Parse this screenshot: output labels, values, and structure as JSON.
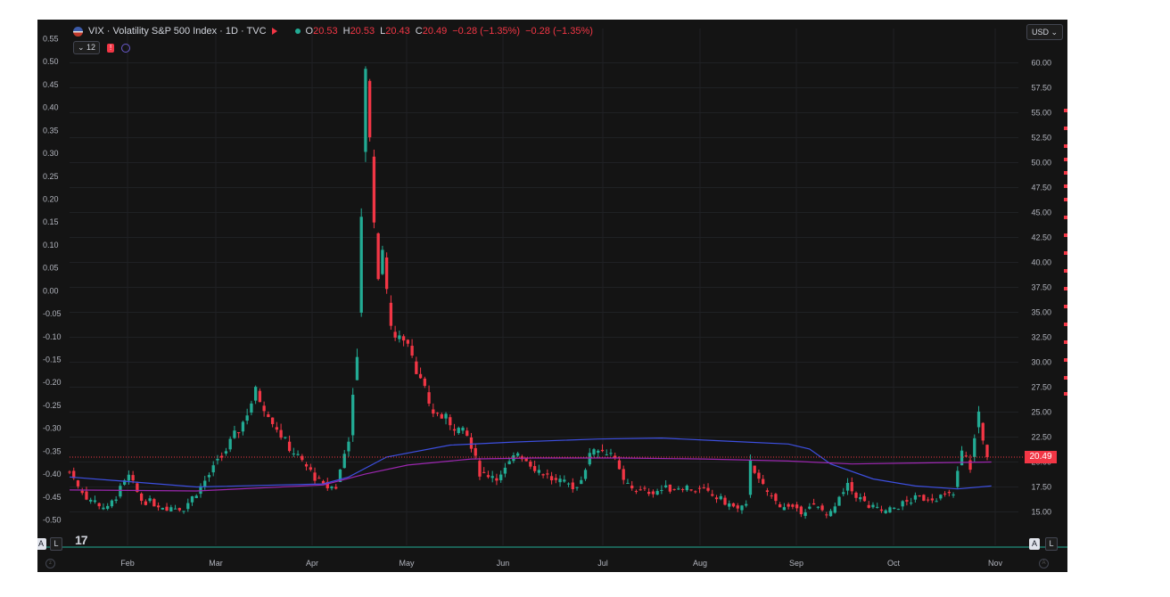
{
  "header": {
    "title": "VIX · Volatility S&P 500 Index · 1D · TVC",
    "o_label": "O",
    "o_value": "20.53",
    "h_label": "H",
    "h_value": "20.53",
    "l_label": "L",
    "l_value": "20.43",
    "c_label": "C",
    "c_value": "20.49",
    "change": "−0.28 (−1.35%)",
    "change2": "−0.28 (−1.35%)"
  },
  "controls": {
    "indicators_count": "12",
    "currency": "USD"
  },
  "colors": {
    "up": "#22ab94",
    "down": "#f23645",
    "ma_long": "#3d4fe0",
    "ma_short": "#9c27b0",
    "price_line": "#f23645",
    "grid": "#1f2124",
    "axis_text": "#b2b5be"
  },
  "buttons": {
    "a_left": "A",
    "l_left": "L",
    "a_right": "A",
    "l_right": "L"
  },
  "chart_data": {
    "type": "candlestick",
    "title": "VIX · Volatility S&P 500 Index · 1D · TVC",
    "last_price": 20.49,
    "last_price_label": "20.49",
    "x_ticks": [
      "Feb",
      "Mar",
      "Apr",
      "May",
      "Jun",
      "Jul",
      "Aug",
      "Sep",
      "Oct",
      "Nov"
    ],
    "right_axis": {
      "range": [
        13.0,
        63.0
      ],
      "ticks": [
        "60.00",
        "57.50",
        "55.00",
        "52.50",
        "50.00",
        "47.50",
        "45.00",
        "42.50",
        "40.00",
        "37.50",
        "35.00",
        "32.50",
        "30.00",
        "27.50",
        "25.00",
        "22.50",
        "20.00",
        "17.50",
        "15.00"
      ]
    },
    "left_axis": {
      "range": [
        -0.55,
        0.59
      ],
      "ticks": [
        "0.55",
        "0.50",
        "0.45",
        "0.40",
        "0.35",
        "0.30",
        "0.25",
        "0.20",
        "0.15",
        "0.10",
        "0.05",
        "0.00",
        "-0.05",
        "-0.10",
        "-0.15",
        "-0.20",
        "-0.25",
        "-0.30",
        "-0.35",
        "-0.40",
        "-0.45",
        "-0.50"
      ]
    },
    "anchors": [
      {
        "day": 0,
        "close": 19.0
      },
      {
        "day": 4,
        "close": 16.5
      },
      {
        "day": 9,
        "close": 15.3
      },
      {
        "day": 14,
        "close": 18.5
      },
      {
        "day": 17,
        "close": 16.2
      },
      {
        "day": 23,
        "close": 15.5
      },
      {
        "day": 27,
        "close": 15.4
      },
      {
        "day": 31,
        "close": 17.5
      },
      {
        "day": 36,
        "close": 20.5
      },
      {
        "day": 41,
        "close": 24.0
      },
      {
        "day": 44,
        "close": 27.0
      },
      {
        "day": 47,
        "close": 25.0
      },
      {
        "day": 51,
        "close": 22.0
      },
      {
        "day": 55,
        "close": 20.0
      },
      {
        "day": 60,
        "close": 17.5
      },
      {
        "day": 63,
        "close": 17.5
      },
      {
        "day": 66,
        "close": 22.5
      },
      {
        "day": 68,
        "close": 30.0
      },
      {
        "day": 69,
        "close": 45.0
      },
      {
        "day": 70,
        "close": 60.0
      },
      {
        "day": 71,
        "close": 52.0
      },
      {
        "day": 72,
        "close": 45.0
      },
      {
        "day": 73,
        "close": 37.5
      },
      {
        "day": 74,
        "close": 42.0
      },
      {
        "day": 76,
        "close": 33.0
      },
      {
        "day": 80,
        "close": 32.5
      },
      {
        "day": 83,
        "close": 28.0
      },
      {
        "day": 86,
        "close": 25.0
      },
      {
        "day": 90,
        "close": 24.0
      },
      {
        "day": 94,
        "close": 22.5
      },
      {
        "day": 97,
        "close": 19.0
      },
      {
        "day": 102,
        "close": 18.5
      },
      {
        "day": 106,
        "close": 21.0
      },
      {
        "day": 110,
        "close": 19.5
      },
      {
        "day": 115,
        "close": 18.0
      },
      {
        "day": 120,
        "close": 17.5
      },
      {
        "day": 124,
        "close": 21.5
      },
      {
        "day": 128,
        "close": 21.0
      },
      {
        "day": 131,
        "close": 18.0
      },
      {
        "day": 135,
        "close": 17.0
      },
      {
        "day": 140,
        "close": 17.2
      },
      {
        "day": 145,
        "close": 17.6
      },
      {
        "day": 150,
        "close": 17.0
      },
      {
        "day": 155,
        "close": 16.0
      },
      {
        "day": 158,
        "close": 15.2
      },
      {
        "day": 160,
        "close": 15.5
      },
      {
        "day": 161,
        "close": 20.5
      },
      {
        "day": 163,
        "close": 18.0
      },
      {
        "day": 167,
        "close": 16.0
      },
      {
        "day": 172,
        "close": 15.0
      },
      {
        "day": 176,
        "close": 15.5
      },
      {
        "day": 180,
        "close": 14.8
      },
      {
        "day": 184,
        "close": 17.5
      },
      {
        "day": 189,
        "close": 15.5
      },
      {
        "day": 193,
        "close": 15.0
      },
      {
        "day": 197,
        "close": 15.8
      },
      {
        "day": 200,
        "close": 16.3
      },
      {
        "day": 205,
        "close": 16.5
      },
      {
        "day": 209,
        "close": 16.7
      },
      {
        "day": 211,
        "close": 21.0
      },
      {
        "day": 213,
        "close": 19.5
      },
      {
        "day": 215,
        "close": 25.0
      },
      {
        "day": 216,
        "close": 22.5
      },
      {
        "day": 217,
        "close": 20.49
      }
    ],
    "ma_long": {
      "name": "",
      "points": [
        [
          0,
          18.5
        ],
        [
          30,
          17.5
        ],
        [
          60,
          17.8
        ],
        [
          66,
          18.5
        ],
        [
          75,
          20.5
        ],
        [
          90,
          21.7
        ],
        [
          105,
          22.0
        ],
        [
          125,
          22.3
        ],
        [
          140,
          22.4
        ],
        [
          155,
          22.1
        ],
        [
          170,
          21.8
        ],
        [
          175,
          21.3
        ],
        [
          180,
          19.8
        ],
        [
          190,
          18.3
        ],
        [
          200,
          17.6
        ],
        [
          210,
          17.3
        ],
        [
          218,
          17.6
        ]
      ]
    },
    "ma_short": {
      "name": "",
      "points": [
        [
          0,
          17.2
        ],
        [
          30,
          17.1
        ],
        [
          60,
          17.7
        ],
        [
          70,
          18.8
        ],
        [
          80,
          19.7
        ],
        [
          95,
          20.3
        ],
        [
          110,
          20.4
        ],
        [
          130,
          20.4
        ],
        [
          150,
          20.3
        ],
        [
          170,
          20.1
        ],
        [
          185,
          19.8
        ],
        [
          200,
          19.9
        ],
        [
          218,
          20.0
        ]
      ]
    }
  }
}
